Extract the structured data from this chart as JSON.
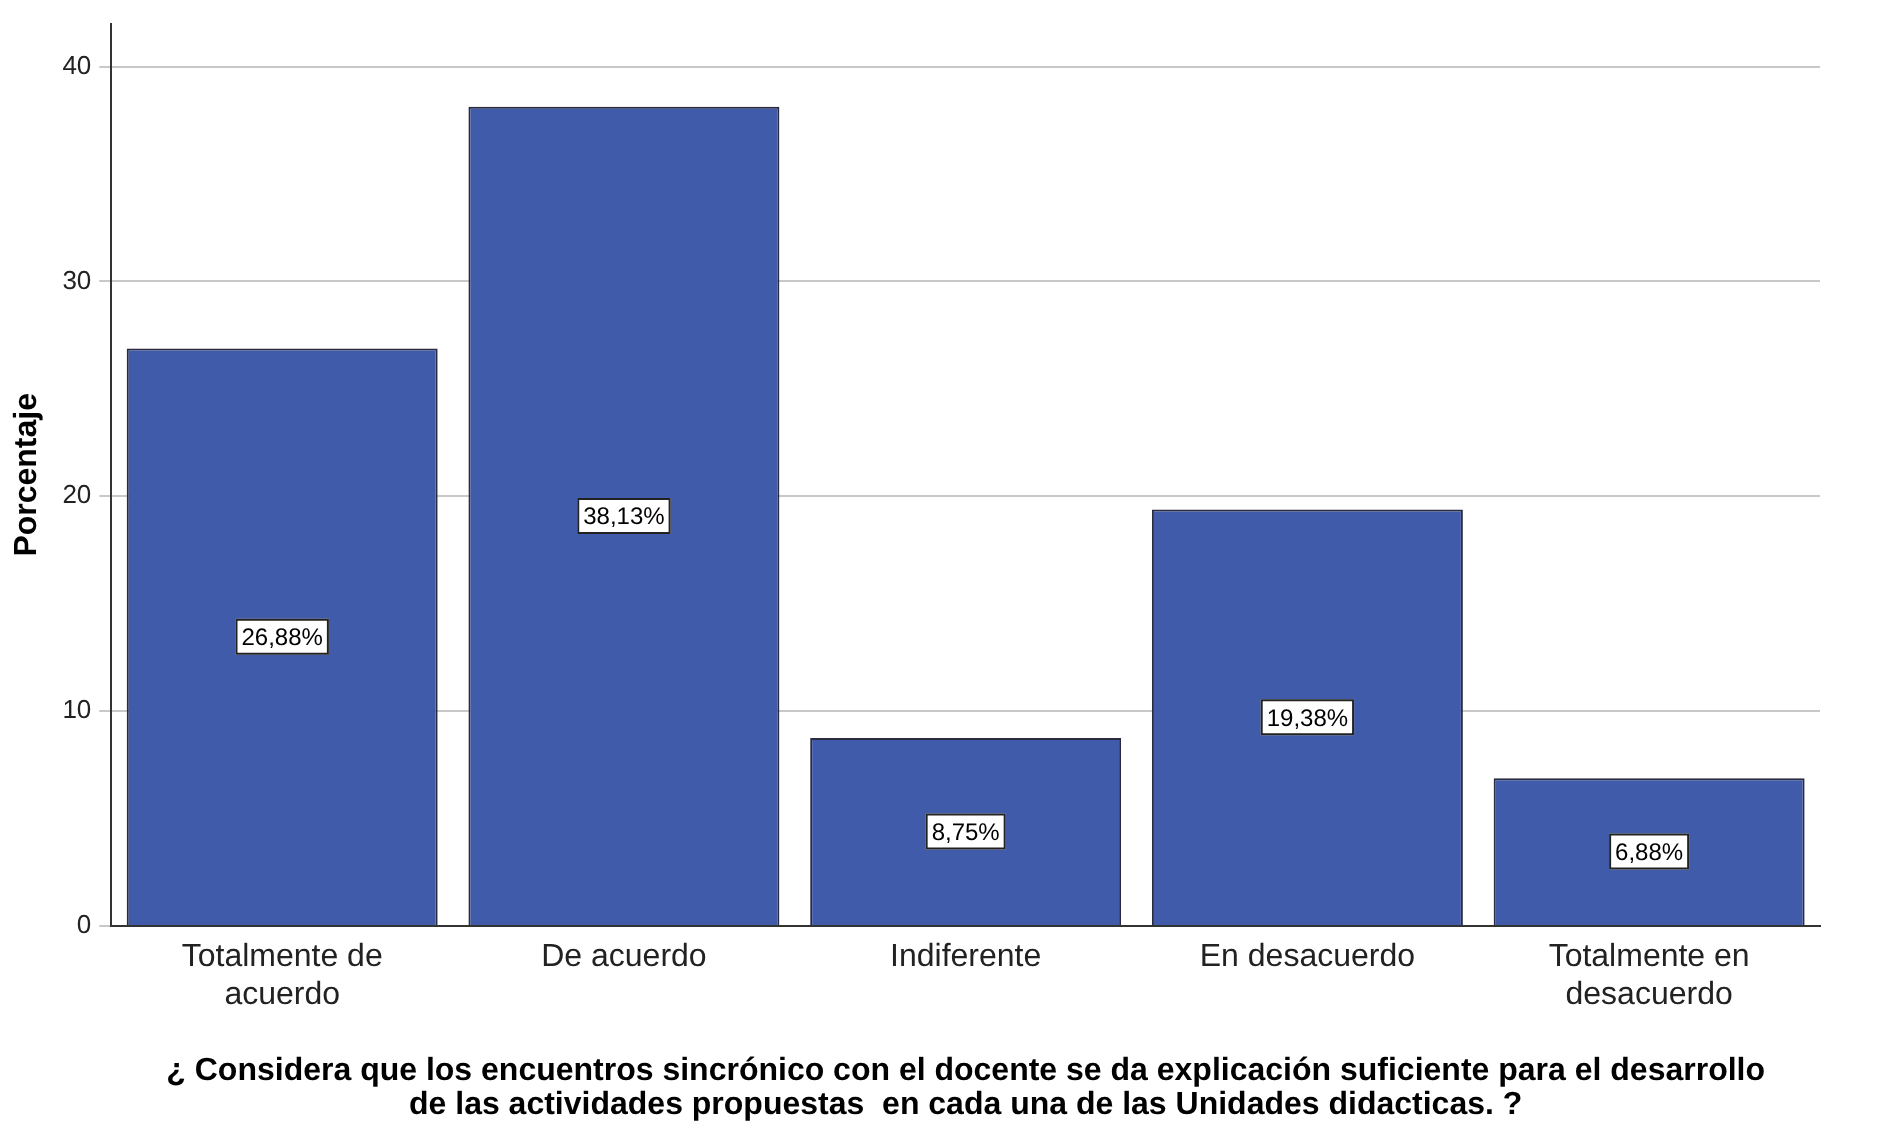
{
  "chart_data": {
    "type": "bar",
    "xlabel": "¿ Considera que los encuentros sincrónico con el docente se da explicación suficiente para el desarrollo de las actividades propuestas  en cada una de las Unidades didacticas. ?",
    "ylabel": "Porcentaje",
    "categories": [
      "Totalmente de acuerdo",
      "De acuerdo",
      "Indiferente",
      "En desacuerdo",
      "Totalmente en desacuerdo"
    ],
    "values": [
      26.88,
      38.13,
      8.75,
      19.38,
      6.88
    ],
    "value_labels": [
      "26,88%",
      "38,13%",
      "8,75%",
      "19,38%",
      "6,88%"
    ],
    "color": "#3f5ba9",
    "ylim": [
      0,
      42
    ],
    "yticks": [
      0,
      10,
      20,
      30,
      40
    ],
    "grid": "y",
    "legend": false
  }
}
